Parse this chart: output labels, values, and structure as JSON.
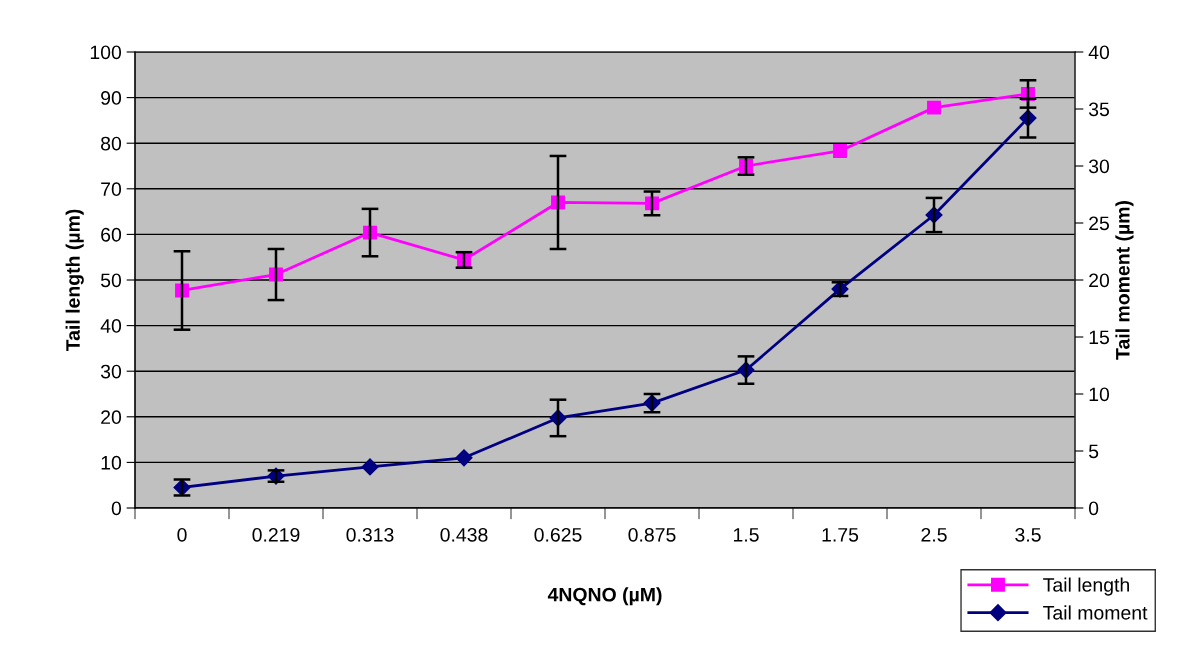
{
  "chart_data": {
    "type": "line",
    "xlabel": "4NQNO (µM)",
    "ylabel": "Tail length (µm)",
    "y2label": "Tail moment (µm)",
    "categories": [
      "0",
      "0.219",
      "0.313",
      "0.438",
      "0.625",
      "0.875",
      "1.5",
      "1.75",
      "2.5",
      "3.5"
    ],
    "series": [
      {
        "name": "Tail length",
        "color": "#ff00ff",
        "marker": "square",
        "values": [
          47.7,
          51.2,
          60.4,
          54.4,
          67.0,
          66.8,
          75.0,
          78.3,
          87.8,
          90.8
        ],
        "errors": [
          8.6,
          5.6,
          5.2,
          1.7,
          10.2,
          2.6,
          1.9,
          null,
          null,
          3.0
        ]
      },
      {
        "name": "Tail moment",
        "color": "#000080",
        "marker": "diamond",
        "axis": "y2",
        "values": [
          1.8,
          2.8,
          3.6,
          4.4,
          7.9,
          9.2,
          12.1,
          19.2,
          25.7,
          34.2
        ],
        "errors": [
          0.7,
          0.5,
          null,
          null,
          1.6,
          0.8,
          1.2,
          0.6,
          1.5,
          1.7
        ]
      }
    ],
    "ylim": [
      0,
      100
    ],
    "yticks": [
      0,
      10,
      20,
      30,
      40,
      50,
      60,
      70,
      80,
      90,
      100
    ],
    "y2lim": [
      0,
      40
    ],
    "y2ticks": [
      0,
      5,
      10,
      15,
      20,
      25,
      30,
      35,
      40
    ],
    "grid": "y",
    "legend": "bottom right",
    "line_style": "solid"
  }
}
